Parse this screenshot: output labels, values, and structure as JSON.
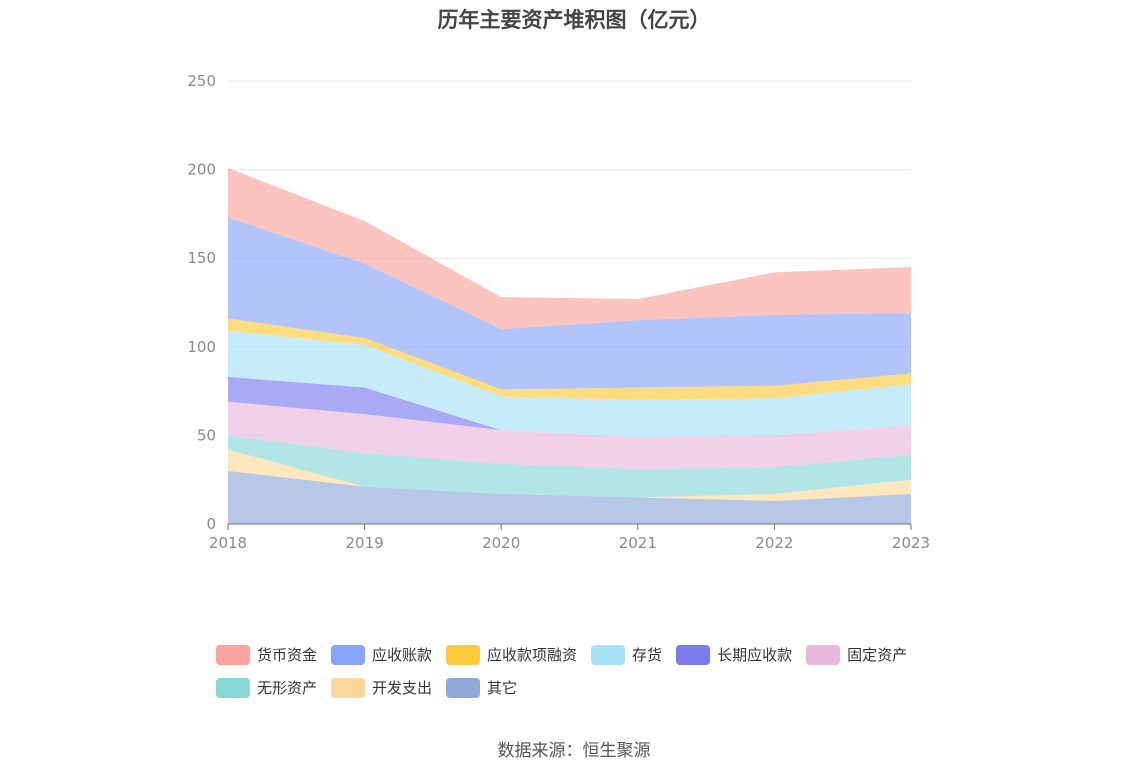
{
  "chart_data": {
    "type": "area",
    "stacked": true,
    "title": "历年主要资产堆积图（亿元）",
    "source": "数据来源：恒生聚源",
    "categories": [
      "2018",
      "2019",
      "2020",
      "2021",
      "2022",
      "2023"
    ],
    "ylim": [
      0,
      250
    ],
    "yticks": [
      "0",
      "50",
      "100",
      "150",
      "200",
      "250"
    ],
    "grid": true,
    "legend_position": "bottom",
    "series": [
      {
        "name": "其它",
        "color": "#8faad9",
        "values": [
          30,
          21,
          17,
          15,
          13,
          17
        ]
      },
      {
        "name": "开发支出",
        "color": "#fdd89a",
        "values": [
          12,
          0,
          0,
          0,
          4,
          8
        ]
      },
      {
        "name": "无形资产",
        "color": "#88d7d7",
        "values": [
          8,
          19,
          17,
          16,
          15,
          14
        ]
      },
      {
        "name": "固定资产",
        "color": "#e8b8dc",
        "values": [
          19,
          22,
          19,
          18,
          18,
          17
        ]
      },
      {
        "name": "长期应收款",
        "color": "#7b7bef",
        "values": [
          14,
          15,
          0,
          0,
          0,
          0
        ]
      },
      {
        "name": "存货",
        "color": "#a8e2f8",
        "values": [
          26,
          24,
          19,
          21,
          21,
          23
        ]
      },
      {
        "name": "应收款项融资",
        "color": "#fec93a",
        "values": [
          7,
          4,
          4,
          7,
          7,
          6
        ]
      },
      {
        "name": "应收账款",
        "color": "#87a6fb",
        "values": [
          57,
          42,
          34,
          38,
          40,
          34
        ]
      },
      {
        "name": "货币资金",
        "color": "#fba49d",
        "values": [
          28,
          24,
          18,
          12,
          24,
          26
        ]
      }
    ],
    "legend_order": [
      "货币资金",
      "应收账款",
      "应收款项融资",
      "存货",
      "长期应收款",
      "固定资产",
      "无形资产",
      "开发支出",
      "其它"
    ]
  }
}
